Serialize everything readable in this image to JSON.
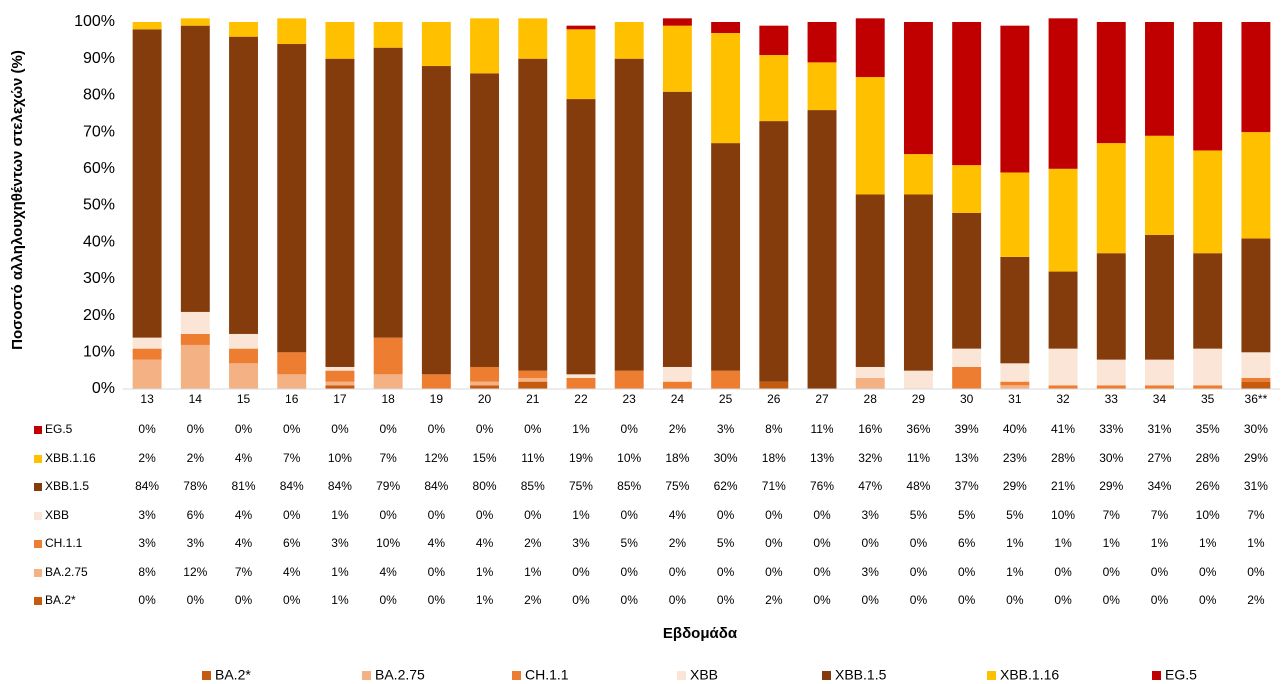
{
  "chart_data": {
    "type": "stacked_bar",
    "y_axis_label": "Ποσοστό αλληλουχηθέντων στελεχών (%)",
    "x_axis_label": "Εβδομάδα",
    "categories": [
      "13",
      "14",
      "15",
      "16",
      "17",
      "18",
      "19",
      "20",
      "21",
      "22",
      "23",
      "24",
      "25",
      "26",
      "27",
      "28",
      "29",
      "30",
      "31",
      "32",
      "33",
      "34",
      "35",
      "36**"
    ],
    "ylim": [
      0,
      100
    ],
    "yticks": [
      {
        "value": 0,
        "label": "0%"
      },
      {
        "value": 10,
        "label": "10%"
      },
      {
        "value": 20,
        "label": "20%"
      },
      {
        "value": 30,
        "label": "30%"
      },
      {
        "value": 40,
        "label": "40%"
      },
      {
        "value": 50,
        "label": "50%"
      },
      {
        "value": 60,
        "label": "60%"
      },
      {
        "value": 70,
        "label": "70%"
      },
      {
        "value": 80,
        "label": "80%"
      },
      {
        "value": 90,
        "label": "90%"
      },
      {
        "value": 100,
        "label": "100%"
      }
    ],
    "series": [
      {
        "name": "BA.2*",
        "color": "#c55a11",
        "values": [
          0,
          0,
          0,
          0,
          1,
          0,
          0,
          1,
          2,
          0,
          0,
          0,
          0,
          2,
          0,
          0,
          0,
          0,
          0,
          0,
          0,
          0,
          0,
          2
        ],
        "value_labels": [
          "0%",
          "0%",
          "0%",
          "0%",
          "1%",
          "0%",
          "0%",
          "1%",
          "2%",
          "0%",
          "0%",
          "0%",
          "0%",
          "2%",
          "0%",
          "0%",
          "0%",
          "0%",
          "0%",
          "0%",
          "0%",
          "0%",
          "0%",
          "2%"
        ]
      },
      {
        "name": "BA.2.75",
        "color": "#f4b183",
        "values": [
          8,
          12,
          7,
          4,
          1,
          4,
          0,
          1,
          1,
          0,
          0,
          0,
          0,
          0,
          0,
          3,
          0,
          0,
          1,
          0,
          0,
          0,
          0,
          0
        ],
        "value_labels": [
          "8%",
          "12%",
          "7%",
          "4%",
          "1%",
          "4%",
          "0%",
          "1%",
          "1%",
          "0%",
          "0%",
          "0%",
          "0%",
          "0%",
          "0%",
          "3%",
          "0%",
          "0%",
          "1%",
          "0%",
          "0%",
          "0%",
          "0%",
          "0%"
        ]
      },
      {
        "name": "CH.1.1",
        "color": "#ed7d31",
        "values": [
          3,
          3,
          4,
          6,
          3,
          10,
          4,
          4,
          2,
          3,
          5,
          2,
          5,
          0,
          0,
          0,
          0,
          6,
          1,
          1,
          1,
          1,
          1,
          1
        ],
        "value_labels": [
          "3%",
          "3%",
          "4%",
          "6%",
          "3%",
          "10%",
          "4%",
          "4%",
          "2%",
          "3%",
          "5%",
          "2%",
          "5%",
          "0%",
          "0%",
          "0%",
          "0%",
          "6%",
          "1%",
          "1%",
          "1%",
          "1%",
          "1%",
          "1%"
        ]
      },
      {
        "name": "XBB",
        "color": "#fbe5d6",
        "values": [
          3,
          6,
          4,
          0,
          1,
          0,
          0,
          0,
          0,
          1,
          0,
          4,
          0,
          0,
          0,
          3,
          5,
          5,
          5,
          10,
          7,
          7,
          10,
          7
        ],
        "value_labels": [
          "3%",
          "6%",
          "4%",
          "0%",
          "1%",
          "0%",
          "0%",
          "0%",
          "0%",
          "1%",
          "0%",
          "4%",
          "0%",
          "0%",
          "0%",
          "3%",
          "5%",
          "5%",
          "5%",
          "10%",
          "7%",
          "7%",
          "10%",
          "7%"
        ]
      },
      {
        "name": "XBB.1.5",
        "color": "#843c0c",
        "values": [
          84,
          78,
          81,
          84,
          84,
          79,
          84,
          80,
          85,
          75,
          85,
          75,
          62,
          71,
          76,
          47,
          48,
          37,
          29,
          21,
          29,
          34,
          26,
          31
        ],
        "value_labels": [
          "84%",
          "78%",
          "81%",
          "84%",
          "84%",
          "79%",
          "84%",
          "80%",
          "85%",
          "75%",
          "85%",
          "75%",
          "62%",
          "71%",
          "76%",
          "47%",
          "48%",
          "37%",
          "29%",
          "21%",
          "29%",
          "34%",
          "26%",
          "31%"
        ]
      },
      {
        "name": "XBB.1.16",
        "color": "#ffc000",
        "values": [
          2,
          2,
          4,
          7,
          10,
          7,
          12,
          15,
          11,
          19,
          10,
          18,
          30,
          18,
          13,
          32,
          11,
          13,
          23,
          28,
          30,
          27,
          28,
          29
        ],
        "value_labels": [
          "2%",
          "2%",
          "4%",
          "7%",
          "10%",
          "7%",
          "12%",
          "15%",
          "11%",
          "19%",
          "10%",
          "18%",
          "30%",
          "18%",
          "13%",
          "32%",
          "11%",
          "13%",
          "23%",
          "28%",
          "30%",
          "27%",
          "28%",
          "29%"
        ]
      },
      {
        "name": "EG.5",
        "color": "#c00000",
        "values": [
          0,
          0,
          0,
          0,
          0,
          0,
          0,
          0,
          0,
          1,
          0,
          2,
          3,
          8,
          11,
          16,
          36,
          39,
          40,
          41,
          33,
          31,
          35,
          30
        ],
        "value_labels": [
          "0%",
          "0%",
          "0%",
          "0%",
          "0%",
          "0%",
          "0%",
          "0%",
          "0%",
          "1%",
          "0%",
          "2%",
          "3%",
          "8%",
          "11%",
          "16%",
          "36%",
          "39%",
          "40%",
          "41%",
          "33%",
          "31%",
          "35%",
          "30%"
        ]
      }
    ]
  }
}
